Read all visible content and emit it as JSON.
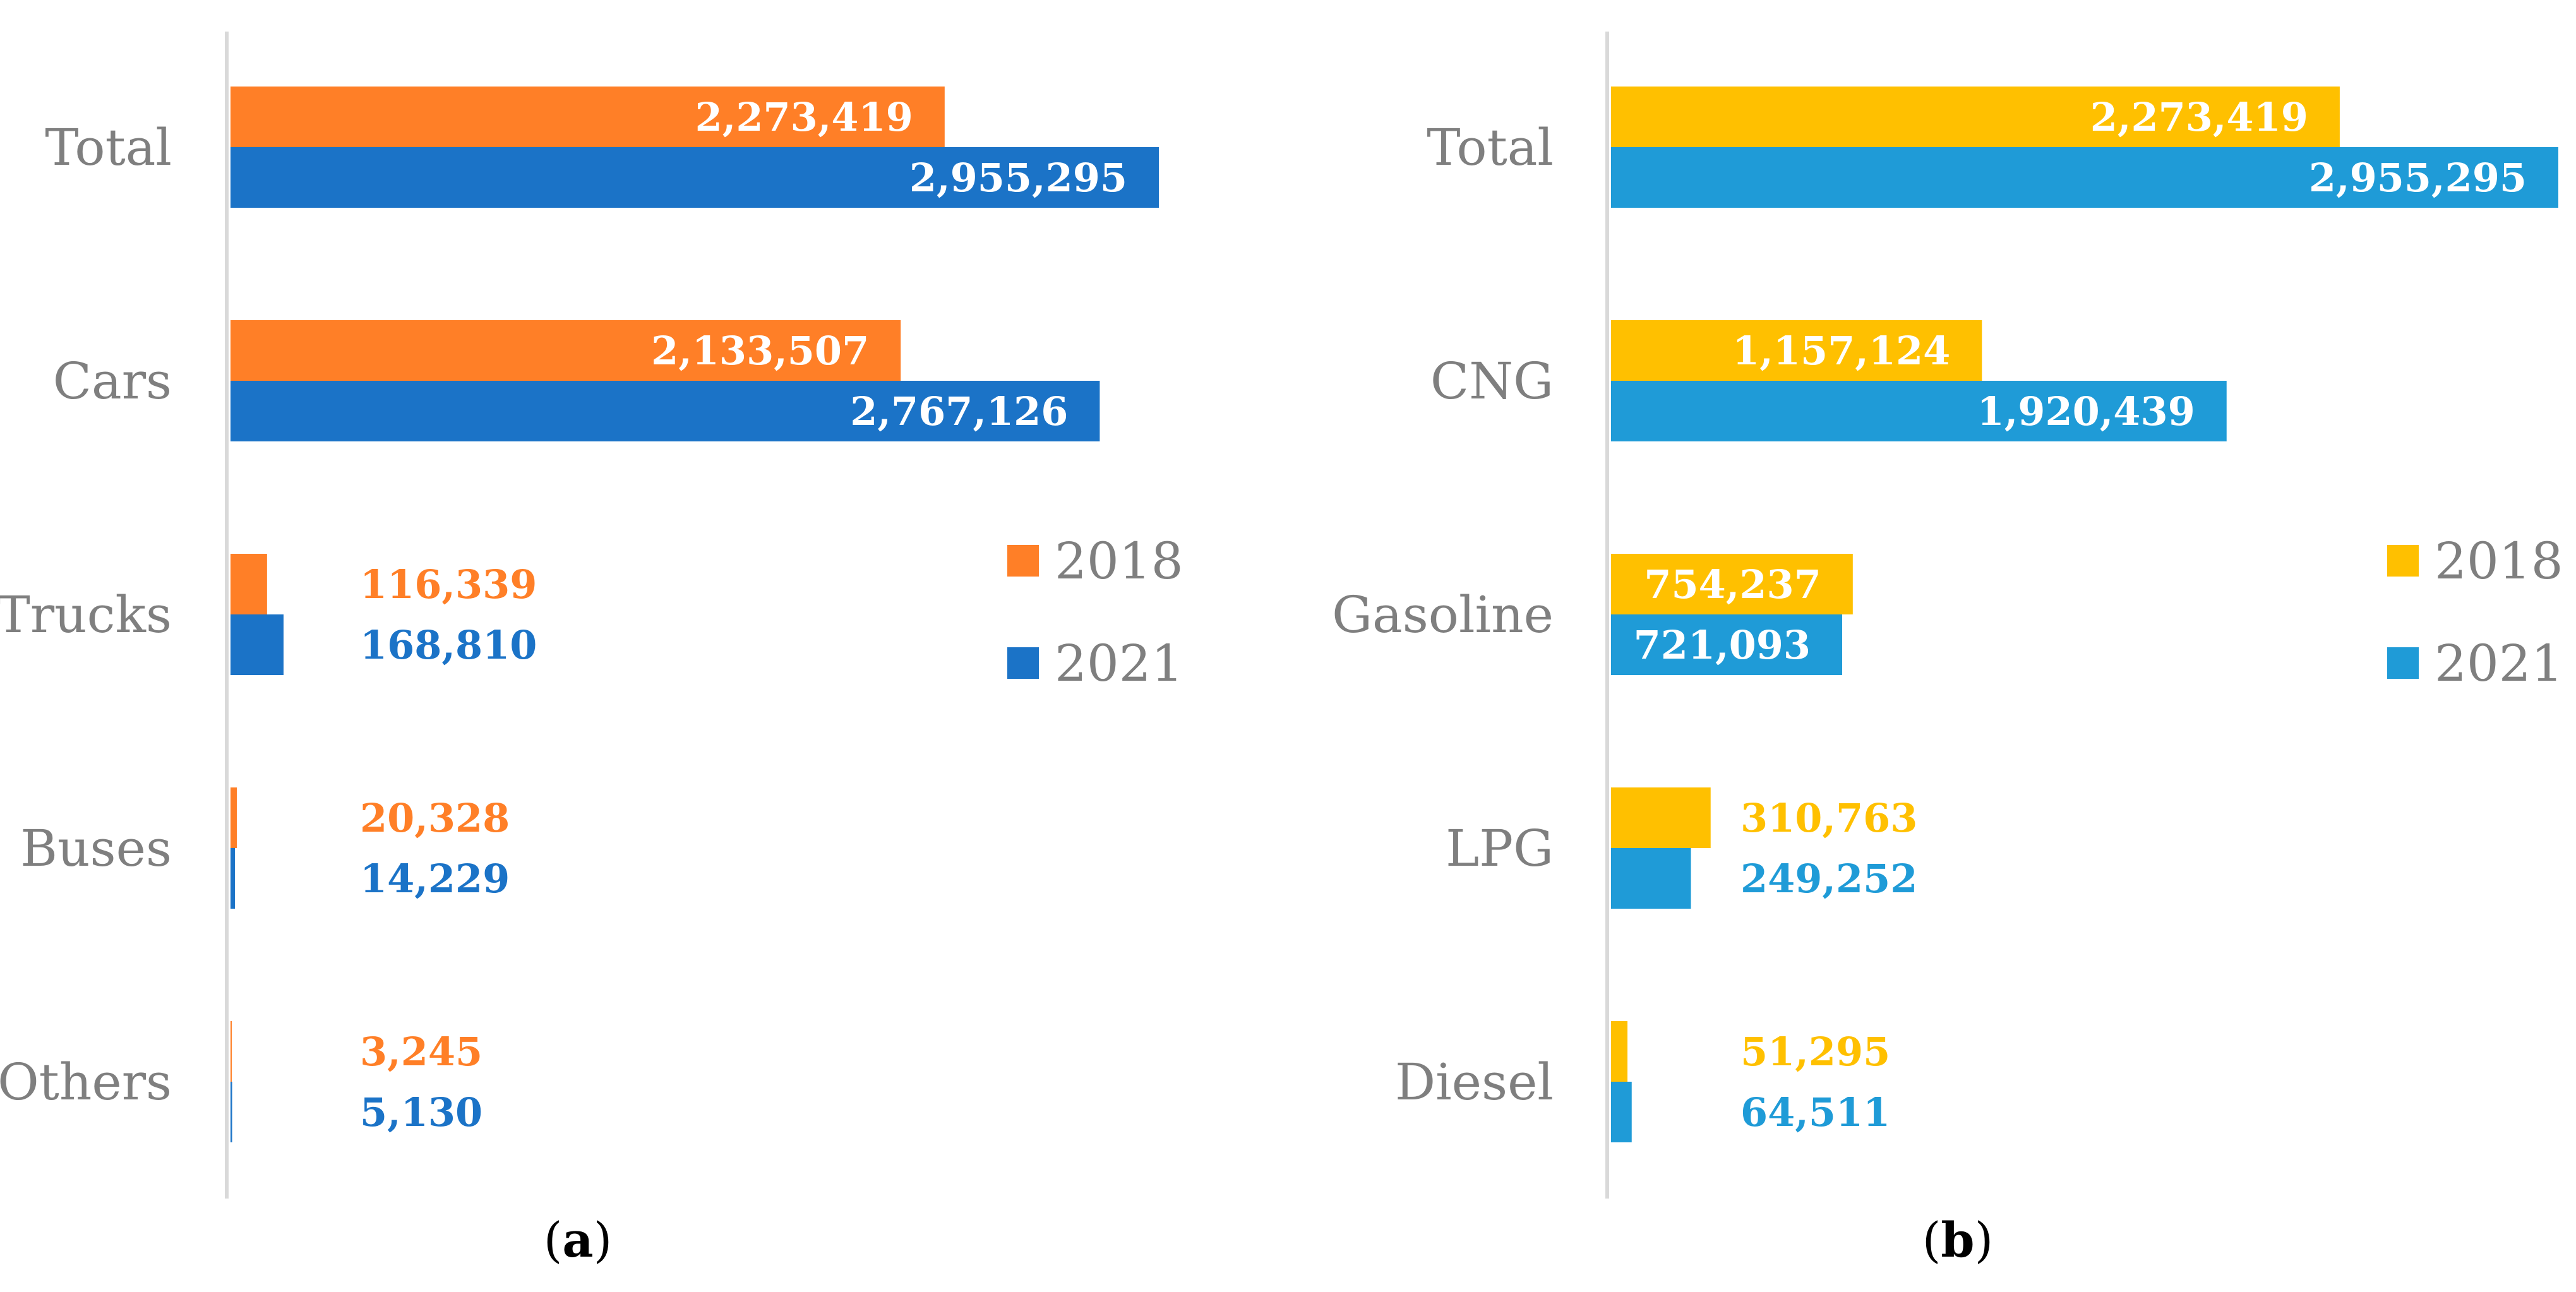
{
  "chart_data": [
    {
      "type": "bar",
      "orientation": "horizontal",
      "panel_label": "a",
      "categories": [
        "Total",
        "Cars",
        "Trucks",
        "Buses",
        "Others"
      ],
      "series": [
        {
          "name": "2018",
          "color": "#FF7F27",
          "values": [
            2273419,
            2133507,
            116339,
            20328,
            3245
          ],
          "value_labels": [
            "2,273,419",
            "2,133,507",
            "116,339",
            "20,328",
            "3,245"
          ]
        },
        {
          "name": "2021",
          "color": "#1B73C7",
          "values": [
            2955295,
            2767126,
            168810,
            14229,
            5130
          ],
          "value_labels": [
            "2,955,295",
            "2,767,126",
            "168,810",
            "14,229",
            "5,130"
          ]
        }
      ],
      "legend": [
        "2018",
        "2021"
      ],
      "legend_position": "right"
    },
    {
      "type": "bar",
      "orientation": "horizontal",
      "panel_label": "b",
      "categories": [
        "Total",
        "CNG",
        "Gasoline",
        "LPG",
        "Diesel"
      ],
      "series": [
        {
          "name": "2018",
          "color": "#FFC000",
          "values": [
            2273419,
            1157124,
            754237,
            310763,
            51295
          ],
          "value_labels": [
            "2,273,419",
            "1,157,124",
            "754,237",
            "310,763",
            "51,295"
          ]
        },
        {
          "name": "2021",
          "color": "#1F9BD7",
          "values": [
            2955295,
            1920439,
            721093,
            249252,
            64511
          ],
          "value_labels": [
            "2,955,295",
            "1,920,439",
            "721,093",
            "249,252",
            "64,511"
          ]
        }
      ],
      "legend": [
        "2018",
        "2021"
      ],
      "legend_position": "right"
    }
  ]
}
